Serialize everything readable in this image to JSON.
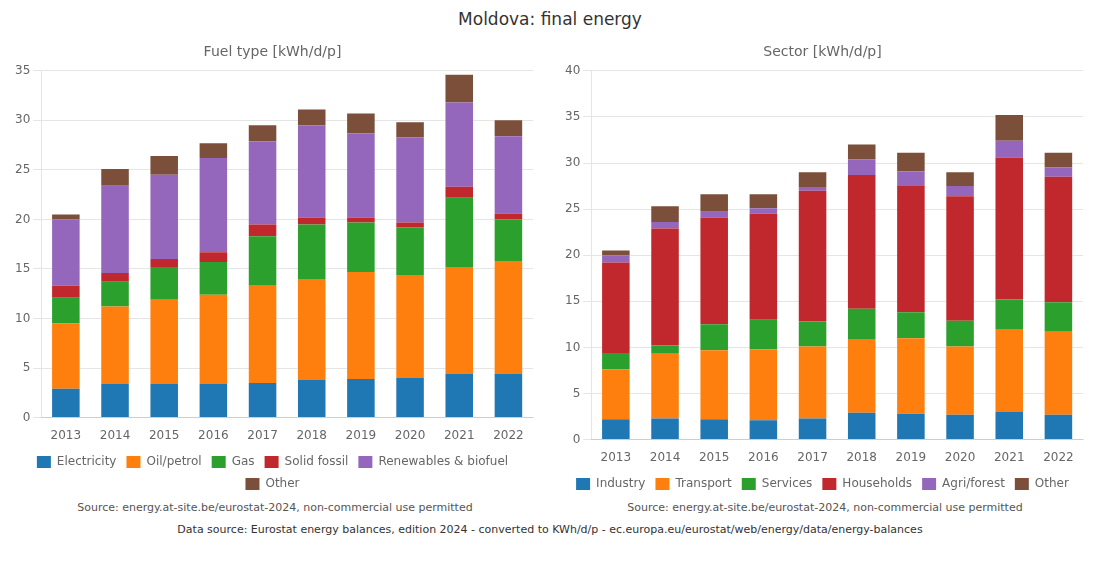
{
  "title": "Moldova: final energy",
  "annotations": [
    "Data source: Eurostat energy balances, edition 2024 - converted to KWh/d/p - ec.europa.eu/eurostat/web/energy/data/energy-balances"
  ],
  "chart_data": [
    {
      "type": "bar",
      "title": "Fuel type [kWh/d/p]",
      "stacked": true,
      "grid": true,
      "legend": "bottom",
      "annotations": [
        "Source: energy.at-site.be/eurostat-2024, non-commercial use permitted"
      ],
      "categories": [
        2013,
        2014,
        2015,
        2016,
        2017,
        2018,
        2019,
        2020,
        2021,
        2022
      ],
      "series": [
        {
          "name": "Electricity",
          "color": "#1f77b4",
          "values": [
            2.9,
            3.4,
            3.4,
            3.4,
            3.5,
            3.8,
            3.9,
            4.0,
            4.4,
            4.4
          ]
        },
        {
          "name": "Oil/petrol",
          "color": "#ff7f0e",
          "values": [
            6.6,
            7.8,
            8.5,
            9.0,
            9.8,
            10.2,
            10.8,
            10.4,
            10.8,
            11.4
          ]
        },
        {
          "name": "Gas",
          "color": "#2ca02c",
          "values": [
            2.6,
            2.5,
            3.3,
            3.3,
            5.0,
            5.5,
            5.0,
            4.8,
            7.0,
            4.2
          ]
        },
        {
          "name": "Solid fossil",
          "color": "#c0282d",
          "values": [
            1.2,
            0.9,
            0.8,
            1.0,
            1.2,
            0.7,
            0.5,
            0.5,
            1.1,
            0.6
          ]
        },
        {
          "name": "Renewables & biofuel",
          "color": "#9467bd",
          "values": [
            6.7,
            8.8,
            8.5,
            9.5,
            8.4,
            9.3,
            8.5,
            8.6,
            8.5,
            7.8
          ]
        },
        {
          "name": "Other",
          "color": "#7b4f3a",
          "values": [
            0.5,
            1.7,
            1.9,
            1.5,
            1.6,
            1.6,
            2.0,
            1.5,
            2.8,
            1.6
          ]
        }
      ],
      "ylim": [
        0,
        35
      ],
      "yticks": [
        0,
        5,
        10,
        15,
        20,
        25,
        30,
        35
      ]
    },
    {
      "type": "bar",
      "title": "Sector [kWh/d/p]",
      "stacked": true,
      "grid": true,
      "legend": "bottom",
      "annotations": [
        "Source: energy.at-site.be/eurostat-2024, non-commercial use permitted"
      ],
      "categories": [
        2013,
        2014,
        2015,
        2016,
        2017,
        2018,
        2019,
        2020,
        2021,
        2022
      ],
      "series": [
        {
          "name": "Industry",
          "color": "#1f77b4",
          "values": [
            2.2,
            2.3,
            2.2,
            2.1,
            2.3,
            2.9,
            2.8,
            2.7,
            3.0,
            2.7
          ]
        },
        {
          "name": "Transport",
          "color": "#ff7f0e",
          "values": [
            5.4,
            7.0,
            7.5,
            7.7,
            7.8,
            8.0,
            8.2,
            7.4,
            9.0,
            9.0
          ]
        },
        {
          "name": "Services",
          "color": "#2ca02c",
          "values": [
            1.8,
            0.9,
            2.8,
            3.2,
            2.7,
            3.3,
            2.8,
            2.8,
            3.2,
            3.2
          ]
        },
        {
          "name": "Households",
          "color": "#c0282d",
          "values": [
            9.8,
            12.7,
            11.6,
            11.5,
            14.2,
            14.5,
            13.7,
            13.5,
            15.4,
            13.6
          ]
        },
        {
          "name": "Agri/forest",
          "color": "#9467bd",
          "values": [
            0.8,
            0.7,
            0.6,
            0.6,
            0.4,
            1.7,
            1.6,
            1.1,
            1.8,
            1.0
          ]
        },
        {
          "name": "Other",
          "color": "#7b4f3a",
          "values": [
            0.5,
            1.7,
            1.9,
            1.5,
            1.6,
            1.6,
            2.0,
            1.5,
            2.8,
            1.6
          ]
        }
      ],
      "ylim": [
        0,
        40
      ],
      "yticks": [
        0,
        5,
        10,
        15,
        20,
        25,
        30,
        35,
        40
      ]
    }
  ]
}
